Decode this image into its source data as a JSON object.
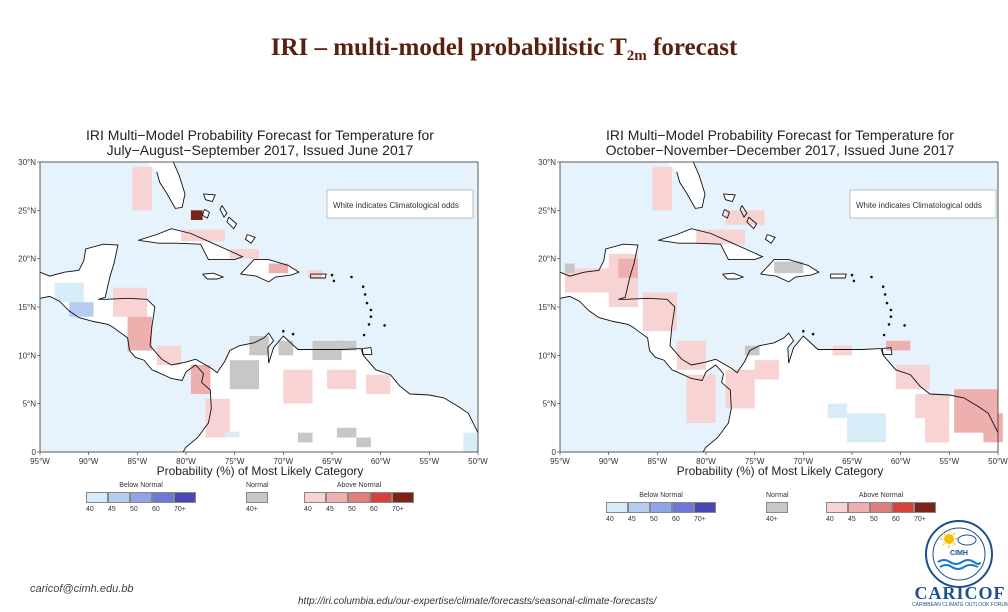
{
  "slide": {
    "title_pre": "IRI – multi-model probabilistic T",
    "title_sub": "2m",
    "title_post": " forecast",
    "email": "caricof@cimh.edu.bb",
    "url": "http://iri.columbia.edu/our-expertise/climate/forecasts/seasonal-climate-forecasts/"
  },
  "colors": {
    "ocean": "#e6f3fc",
    "land": "#ffffff",
    "coast": "#111111",
    "below": [
      "#d8ecf8",
      "#b4cdf0",
      "#8ea6e6",
      "#6f78d6",
      "#4a47b4"
    ],
    "normal": "#c7c7c7",
    "above": [
      "#f7d3d3",
      "#eeafaf",
      "#e07f7f",
      "#d8403a",
      "#7a2316"
    ]
  },
  "chart_data": [
    {
      "type": "heatmap",
      "title_line1": "IRI Multi−Model Probability Forecast for Temperature for",
      "title_line2": "July−August−September 2017, Issued June 2017",
      "xlabel": "Probability (%) of Most Likely Category",
      "note": "White indicates Climatological odds",
      "lon_range": [
        -95,
        -50
      ],
      "lat_range": [
        0,
        30
      ],
      "x_ticks": [
        "95°W",
        "90°W",
        "85°W",
        "80°W",
        "75°W",
        "70°W",
        "65°W",
        "60°W",
        "55°W",
        "50°W"
      ],
      "y_ticks": [
        "0",
        "5°N",
        "10°N",
        "15°N",
        "20°N",
        "25°N",
        "30°N"
      ],
      "cells": [
        {
          "lon": -85.5,
          "lat": 25.0,
          "w": 2.0,
          "h": 4.5,
          "cat": "above",
          "p": 40
        },
        {
          "lon": -79.5,
          "lat": 24.0,
          "w": 1.2,
          "h": 1.0,
          "cat": "above",
          "p": 70
        },
        {
          "lon": -80.5,
          "lat": 21.8,
          "w": 4.5,
          "h": 1.2,
          "cat": "above",
          "p": 40
        },
        {
          "lon": -75.5,
          "lat": 20.0,
          "w": 3.0,
          "h": 1.0,
          "cat": "above",
          "p": 40
        },
        {
          "lon": -71.5,
          "lat": 18.5,
          "w": 2.0,
          "h": 1.0,
          "cat": "above",
          "p": 45
        },
        {
          "lon": -67.5,
          "lat": 18.0,
          "w": 1.5,
          "h": 0.8,
          "cat": "above",
          "p": 40
        },
        {
          "lon": -93.5,
          "lat": 15.5,
          "w": 3.0,
          "h": 2.0,
          "cat": "below",
          "p": 40
        },
        {
          "lon": -92.0,
          "lat": 14.0,
          "w": 2.5,
          "h": 1.5,
          "cat": "below",
          "p": 45
        },
        {
          "lon": -87.5,
          "lat": 14.0,
          "w": 3.5,
          "h": 3.0,
          "cat": "above",
          "p": 40
        },
        {
          "lon": -86.0,
          "lat": 10.5,
          "w": 2.5,
          "h": 3.5,
          "cat": "above",
          "p": 45
        },
        {
          "lon": -83.0,
          "lat": 9.0,
          "w": 2.5,
          "h": 2.0,
          "cat": "above",
          "p": 40
        },
        {
          "lon": -79.5,
          "lat": 6.0,
          "w": 2.0,
          "h": 3.0,
          "cat": "above",
          "p": 45
        },
        {
          "lon": -78.0,
          "lat": 1.5,
          "w": 2.5,
          "h": 4.0,
          "cat": "above",
          "p": 40
        },
        {
          "lon": -75.5,
          "lat": 6.5,
          "w": 3.0,
          "h": 3.0,
          "cat": "normal",
          "p": 40
        },
        {
          "lon": -73.5,
          "lat": 10.0,
          "w": 2.0,
          "h": 2.0,
          "cat": "normal",
          "p": 40
        },
        {
          "lon": -70.5,
          "lat": 10.0,
          "w": 1.5,
          "h": 1.5,
          "cat": "normal",
          "p": 40
        },
        {
          "lon": -67.0,
          "lat": 9.5,
          "w": 3.0,
          "h": 2.0,
          "cat": "normal",
          "p": 40
        },
        {
          "lon": -64.5,
          "lat": 10.5,
          "w": 2.0,
          "h": 1.0,
          "cat": "normal",
          "p": 40
        },
        {
          "lon": -70.0,
          "lat": 5.0,
          "w": 3.0,
          "h": 3.5,
          "cat": "above",
          "p": 40
        },
        {
          "lon": -65.5,
          "lat": 6.5,
          "w": 3.0,
          "h": 2.0,
          "cat": "above",
          "p": 40
        },
        {
          "lon": -61.5,
          "lat": 6.0,
          "w": 2.5,
          "h": 2.0,
          "cat": "above",
          "p": 40
        },
        {
          "lon": -68.5,
          "lat": 1.0,
          "w": 1.5,
          "h": 1.0,
          "cat": "normal",
          "p": 40
        },
        {
          "lon": -64.5,
          "lat": 1.5,
          "w": 2.0,
          "h": 1.0,
          "cat": "normal",
          "p": 40
        },
        {
          "lon": -62.5,
          "lat": 0.5,
          "w": 1.5,
          "h": 1.0,
          "cat": "normal",
          "p": 40
        },
        {
          "lon": -76.0,
          "lat": 1.5,
          "w": 1.5,
          "h": 0.6,
          "cat": "below",
          "p": 40
        },
        {
          "lon": -51.5,
          "lat": 0.0,
          "w": 1.5,
          "h": 2.0,
          "cat": "below",
          "p": 40
        }
      ]
    },
    {
      "type": "heatmap",
      "title_line1": "IRI Multi−Model Probability Forecast for Temperature for",
      "title_line2": "October−November−December 2017, Issued June 2017",
      "xlabel": "Probability (%) of Most Likely Category",
      "note": "White indicates Climatological odds",
      "lon_range": [
        -95,
        -50
      ],
      "lat_range": [
        0,
        30
      ],
      "x_ticks": [
        "95°W",
        "90°W",
        "85°W",
        "80°W",
        "75°W",
        "70°W",
        "65°W",
        "60°W",
        "55°W",
        "50°W"
      ],
      "y_ticks": [
        "0",
        "5°N",
        "10°N",
        "15°N",
        "20°N",
        "25°N",
        "30°N"
      ],
      "cells": [
        {
          "lon": -85.5,
          "lat": 25.0,
          "w": 2.0,
          "h": 4.5,
          "cat": "above",
          "p": 40
        },
        {
          "lon": -78.0,
          "lat": 23.5,
          "w": 4.0,
          "h": 1.5,
          "cat": "above",
          "p": 40
        },
        {
          "lon": -81.0,
          "lat": 21.5,
          "w": 5.0,
          "h": 1.5,
          "cat": "above",
          "p": 40
        },
        {
          "lon": -73.0,
          "lat": 18.5,
          "w": 3.0,
          "h": 1.2,
          "cat": "normal",
          "p": 40
        },
        {
          "lon": -94.5,
          "lat": 16.5,
          "w": 5.0,
          "h": 2.5,
          "cat": "above",
          "p": 40
        },
        {
          "lon": -94.5,
          "lat": 18.5,
          "w": 1.0,
          "h": 1.0,
          "cat": "normal",
          "p": 40
        },
        {
          "lon": -90.0,
          "lat": 15.0,
          "w": 3.0,
          "h": 5.5,
          "cat": "above",
          "p": 40
        },
        {
          "lon": -89.0,
          "lat": 18.0,
          "w": 2.0,
          "h": 2.0,
          "cat": "above",
          "p": 45
        },
        {
          "lon": -86.5,
          "lat": 12.5,
          "w": 3.5,
          "h": 4.0,
          "cat": "above",
          "p": 40
        },
        {
          "lon": -83.0,
          "lat": 8.5,
          "w": 3.0,
          "h": 3.0,
          "cat": "above",
          "p": 40
        },
        {
          "lon": -82.0,
          "lat": 3.0,
          "w": 3.0,
          "h": 5.0,
          "cat": "above",
          "p": 40
        },
        {
          "lon": -78.0,
          "lat": 4.5,
          "w": 3.0,
          "h": 4.0,
          "cat": "above",
          "p": 40
        },
        {
          "lon": -76.0,
          "lat": 10.0,
          "w": 1.5,
          "h": 1.0,
          "cat": "normal",
          "p": 40
        },
        {
          "lon": -75.0,
          "lat": 7.5,
          "w": 2.5,
          "h": 2.0,
          "cat": "above",
          "p": 40
        },
        {
          "lon": -67.0,
          "lat": 10.0,
          "w": 2.0,
          "h": 1.0,
          "cat": "above",
          "p": 40
        },
        {
          "lon": -61.5,
          "lat": 10.5,
          "w": 2.5,
          "h": 1.0,
          "cat": "above",
          "p": 45
        },
        {
          "lon": -60.5,
          "lat": 6.5,
          "w": 3.5,
          "h": 2.5,
          "cat": "above",
          "p": 40
        },
        {
          "lon": -58.5,
          "lat": 3.5,
          "w": 3.5,
          "h": 2.5,
          "cat": "above",
          "p": 40
        },
        {
          "lon": -57.5,
          "lat": 1.0,
          "w": 2.5,
          "h": 2.5,
          "cat": "above",
          "p": 40
        },
        {
          "lon": -54.5,
          "lat": 2.0,
          "w": 4.5,
          "h": 4.5,
          "cat": "above",
          "p": 45
        },
        {
          "lon": -51.5,
          "lat": 1.0,
          "w": 2.0,
          "h": 3.0,
          "cat": "above",
          "p": 45
        },
        {
          "lon": -65.5,
          "lat": 1.0,
          "w": 4.0,
          "h": 3.0,
          "cat": "below",
          "p": 40
        },
        {
          "lon": -67.5,
          "lat": 3.5,
          "w": 2.0,
          "h": 1.5,
          "cat": "below",
          "p": 40
        }
      ]
    }
  ],
  "legend": {
    "below": {
      "label": "Below Normal",
      "ticks": [
        "40",
        "45",
        "50",
        "60",
        "70+"
      ]
    },
    "normal": {
      "label": "Normal",
      "ticks": [
        "40+"
      ]
    },
    "above": {
      "label": "Above Normal",
      "ticks": [
        "40",
        "45",
        "50",
        "60",
        "70+"
      ]
    }
  },
  "logos": {
    "cimh": "CIMH",
    "caricof": "CARICOF",
    "caricof_sub": "CARIBBEAN CLIMATE OUTLOOK FORUM"
  }
}
